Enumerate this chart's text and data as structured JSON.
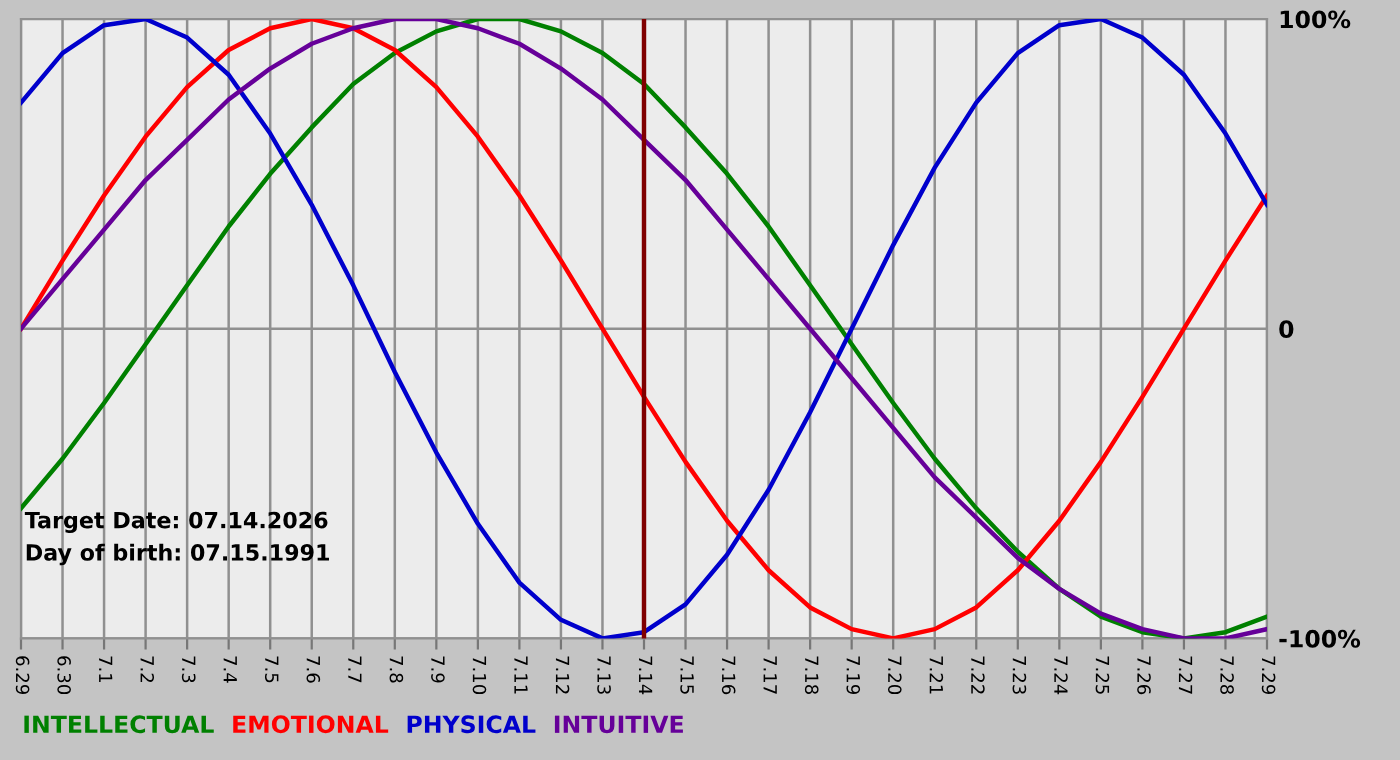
{
  "chart_data": {
    "type": "line",
    "categories": [
      "6.29",
      "6.30",
      "7.1",
      "7.2",
      "7.3",
      "7.4",
      "7.5",
      "7.6",
      "7.7",
      "7.8",
      "7.9",
      "7.10",
      "7.11",
      "7.12",
      "7.13",
      "7.14",
      "7.15",
      "7.16",
      "7.17",
      "7.18",
      "7.19",
      "7.20",
      "7.21",
      "7.22",
      "7.23",
      "7.24",
      "7.25",
      "7.26",
      "7.27",
      "7.28",
      "7.29"
    ],
    "series": [
      {
        "name": "INTELLECTUAL",
        "color": "#008000",
        "values": [
          -58,
          -42,
          -24,
          -5,
          14,
          33,
          50,
          65,
          79,
          89,
          96,
          100,
          100,
          96,
          89,
          79,
          65,
          50,
          33,
          14,
          -5,
          -24,
          -42,
          -58,
          -72,
          -84,
          -93,
          -98,
          -100,
          -98,
          -93
        ]
      },
      {
        "name": "EMOTIONAL",
        "color": "#ff0000",
        "values": [
          0,
          22,
          43,
          62,
          78,
          90,
          97,
          100,
          97,
          90,
          78,
          62,
          43,
          22,
          0,
          -22,
          -43,
          -62,
          -78,
          -90,
          -97,
          -100,
          -97,
          -90,
          -78,
          -62,
          -43,
          -22,
          0,
          22,
          43
        ]
      },
      {
        "name": "PHYSICAL",
        "color": "#0000cc",
        "values": [
          73,
          89,
          98,
          100,
          94,
          82,
          63,
          40,
          14,
          -14,
          -40,
          -63,
          -82,
          -94,
          -100,
          -98,
          -89,
          -73,
          -52,
          -27,
          0,
          27,
          52,
          73,
          89,
          98,
          100,
          94,
          82,
          63,
          40
        ]
      },
      {
        "name": "INTUITIVE",
        "color": "#660099",
        "values": [
          0,
          16,
          32,
          48,
          61,
          74,
          84,
          92,
          97,
          100,
          100,
          97,
          92,
          84,
          74,
          61,
          48,
          32,
          16,
          0,
          -16,
          -32,
          -48,
          -61,
          -74,
          -84,
          -92,
          -97,
          -100,
          -100,
          -97
        ]
      }
    ],
    "ylim": [
      -100,
      100
    ],
    "yticks": [
      {
        "value": -100,
        "label": "-100%"
      },
      0,
      {
        "value": 100,
        "label": "100%"
      }
    ],
    "ref_lines": [
      {
        "axis": "x",
        "value": "7.14",
        "color": "#800000"
      }
    ],
    "annotations": [
      "Target Date: 07.14.2026",
      "Day of birth: 07.15.1991"
    ],
    "grid": true,
    "legend": "bottom left",
    "marker": "none",
    "line_style": "solid"
  }
}
